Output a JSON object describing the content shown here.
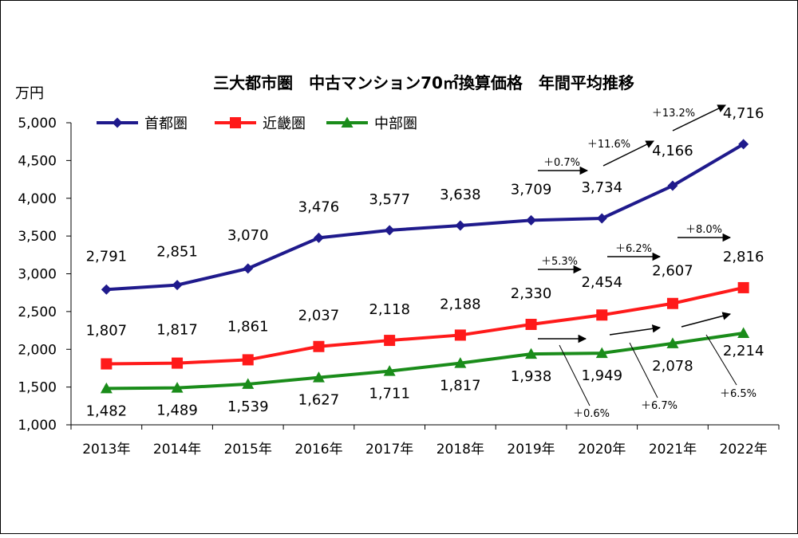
{
  "chart_data": {
    "type": "line",
    "title": "三大都市圏　中古マンション70㎡換算価格　年間平均推移",
    "y_unit": "万円",
    "categories": [
      "2013年",
      "2014年",
      "2015年",
      "2016年",
      "2017年",
      "2018年",
      "2019年",
      "2020年",
      "2021年",
      "2022年"
    ],
    "ylim": [
      1000,
      5000
    ],
    "yticks": [
      "1,000",
      "1,500",
      "2,000",
      "2,500",
      "3,000",
      "3,500",
      "4,000",
      "4,500",
      "5,000"
    ],
    "grid": false,
    "legend_position": "top-left",
    "series": [
      {
        "name": "首都圏",
        "color": "#1F1A8C",
        "marker": "diamond",
        "values": [
          2791,
          2851,
          3070,
          3476,
          3577,
          3638,
          3709,
          3734,
          4166,
          4716
        ],
        "labels": [
          "2,791",
          "2,851",
          "3,070",
          "3,476",
          "3,577",
          "3,638",
          "3,709",
          "3,734",
          "4,166",
          "4,716"
        ]
      },
      {
        "name": "近畿圏",
        "color": "#FF1A1A",
        "marker": "square",
        "values": [
          1807,
          1817,
          1861,
          2037,
          2118,
          2188,
          2330,
          2454,
          2607,
          2816
        ],
        "labels": [
          "1,807",
          "1,817",
          "1,861",
          "2,037",
          "2,118",
          "2,188",
          "2,330",
          "2,454",
          "2,607",
          "2,816"
        ]
      },
      {
        "name": "中部圏",
        "color": "#1A8C1A",
        "marker": "triangle",
        "values": [
          1482,
          1489,
          1539,
          1627,
          1711,
          1817,
          1938,
          1949,
          2078,
          2214
        ],
        "labels": [
          "1,482",
          "1,489",
          "1,539",
          "1,627",
          "1,711",
          "1,817",
          "1,938",
          "1,949",
          "2,078",
          "2,214"
        ]
      }
    ],
    "annotations": [
      {
        "series": "首都圏",
        "from": "2019年",
        "to": "2020年",
        "text": "＋0.7%"
      },
      {
        "series": "首都圏",
        "from": "2020年",
        "to": "2021年",
        "text": "＋11.6%"
      },
      {
        "series": "首都圏",
        "from": "2021年",
        "to": "2022年",
        "text": "＋13.2%"
      },
      {
        "series": "近畿圏",
        "from": "2019年",
        "to": "2020年",
        "text": "＋5.3%"
      },
      {
        "series": "近畿圏",
        "from": "2020年",
        "to": "2021年",
        "text": "＋6.2%"
      },
      {
        "series": "近畿圏",
        "from": "2021年",
        "to": "2022年",
        "text": "＋8.0%"
      },
      {
        "series": "中部圏",
        "from": "2019年",
        "to": "2020年",
        "text": "＋0.6%"
      },
      {
        "series": "中部圏",
        "from": "2020年",
        "to": "2021年",
        "text": "＋6.7%"
      },
      {
        "series": "中部圏",
        "from": "2021年",
        "to": "2022年",
        "text": "＋6.5%"
      }
    ]
  }
}
